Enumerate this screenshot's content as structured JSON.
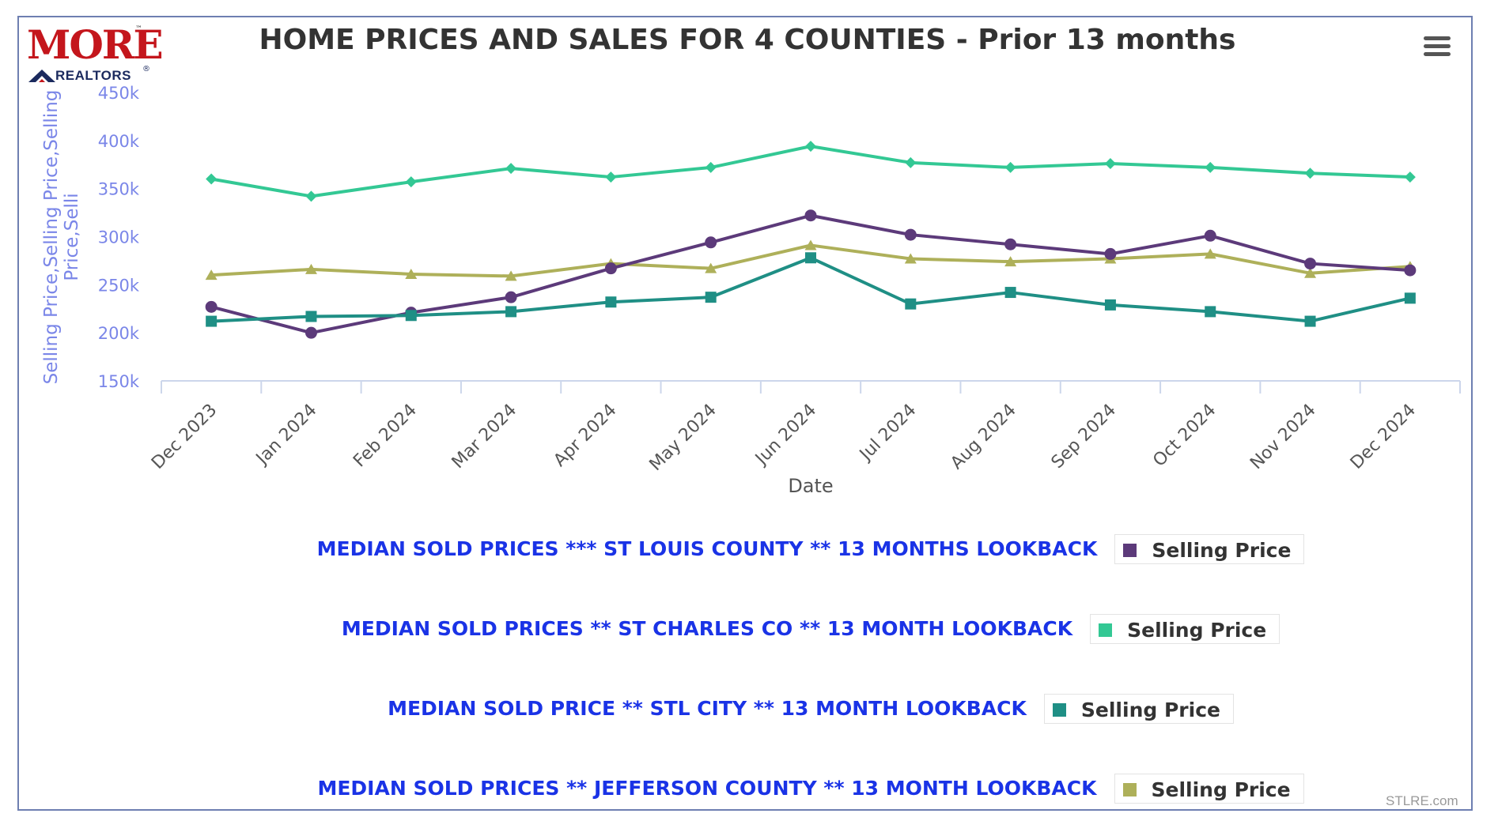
{
  "chart_data": {
    "type": "line",
    "title": "HOME PRICES AND SALES FOR 4 COUNTIES - Prior 13 months",
    "xlabel": "Date",
    "ylabel": "Selling Price,Selling Price,Selling Price,Selli",
    "ylim": [
      150000,
      450000
    ],
    "yticks": [
      150000,
      200000,
      250000,
      300000,
      350000,
      400000,
      450000
    ],
    "ytick_labels": [
      "150k",
      "200k",
      "250k",
      "300k",
      "350k",
      "400k",
      "450k"
    ],
    "categories": [
      "Dec 2023",
      "Jan 2024",
      "Feb 2024",
      "Mar 2024",
      "Apr 2024",
      "May 2024",
      "Jun 2024",
      "Jul 2024",
      "Aug 2024",
      "Sep 2024",
      "Oct 2024",
      "Nov 2024",
      "Dec 2024"
    ],
    "grid": false,
    "legend_position": "bottom",
    "series": [
      {
        "name": "Selling Price",
        "group": "MEDIAN SOLD PRICES *** ST LOUIS COUNTY ** 13 MONTHS LOOKBACK",
        "color": "#5c3a7a",
        "marker": "circle",
        "values": [
          227000,
          200000,
          221000,
          237000,
          267000,
          294000,
          322000,
          302000,
          292000,
          282000,
          301000,
          272000,
          265000
        ]
      },
      {
        "name": "Selling Price",
        "group": "MEDIAN SOLD PRICES ** ST CHARLES CO ** 13 MONTH LOOKBACK",
        "color": "#33c894",
        "marker": "diamond",
        "values": [
          360000,
          342000,
          357000,
          371000,
          362000,
          372000,
          394000,
          377000,
          372000,
          376000,
          372000,
          366000,
          362000
        ]
      },
      {
        "name": "Selling Price",
        "group": "MEDIAN SOLD PRICE ** STL CITY ** 13 MONTH LOOKBACK",
        "color": "#1f8f85",
        "marker": "square",
        "values": [
          212000,
          217000,
          218000,
          222000,
          232000,
          237000,
          278000,
          230000,
          242000,
          229000,
          222000,
          212000,
          236000
        ]
      },
      {
        "name": "Selling Price",
        "group": "MEDIAN SOLD PRICES ** JEFFERSON COUNTY ** 13 MONTH LOOKBACK",
        "color": "#aeb05a",
        "marker": "triangle",
        "values": [
          260000,
          266000,
          261000,
          259000,
          272000,
          267000,
          291000,
          277000,
          274000,
          277000,
          282000,
          262000,
          269000
        ]
      }
    ]
  },
  "logo": {
    "brand": "MORE",
    "tm": "™",
    "sub": "REALTORS",
    "reg": "®"
  },
  "credit": "STLRE.com"
}
